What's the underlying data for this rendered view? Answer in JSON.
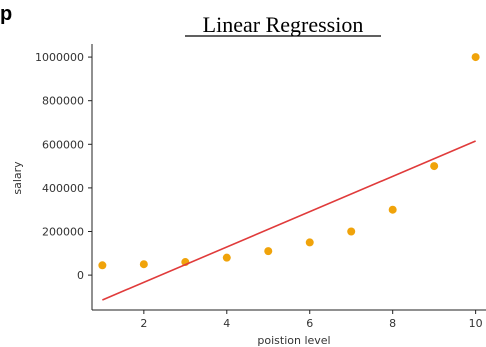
{
  "corner_label": "p",
  "chart_data": {
    "type": "scatter",
    "title": "Linear Regression",
    "xlabel": "poistion level",
    "ylabel": "salary",
    "xlim": [
      0.75,
      10.25
    ],
    "ylim": [
      -160000,
      1060000
    ],
    "xticks": [
      2,
      4,
      6,
      8,
      10
    ],
    "yticks": [
      0,
      200000,
      400000,
      600000,
      800000,
      1000000
    ],
    "xtick_labels": [
      "2",
      "4",
      "6",
      "8",
      "10"
    ],
    "ytick_labels": [
      "0",
      "200000",
      "400000",
      "600000",
      "800000",
      "1000000"
    ],
    "grid": false,
    "series": [
      {
        "type": "scatter",
        "color": "#f0a30a",
        "x": [
          1,
          2,
          3,
          4,
          5,
          6,
          7,
          8,
          9,
          10
        ],
        "y": [
          45000,
          50000,
          60000,
          80000,
          110000,
          150000,
          200000,
          300000,
          500000,
          1000000
        ]
      },
      {
        "type": "line",
        "color": "#e03b3b",
        "x": [
          1,
          10
        ],
        "y": [
          -114000,
          615000
        ]
      }
    ]
  }
}
